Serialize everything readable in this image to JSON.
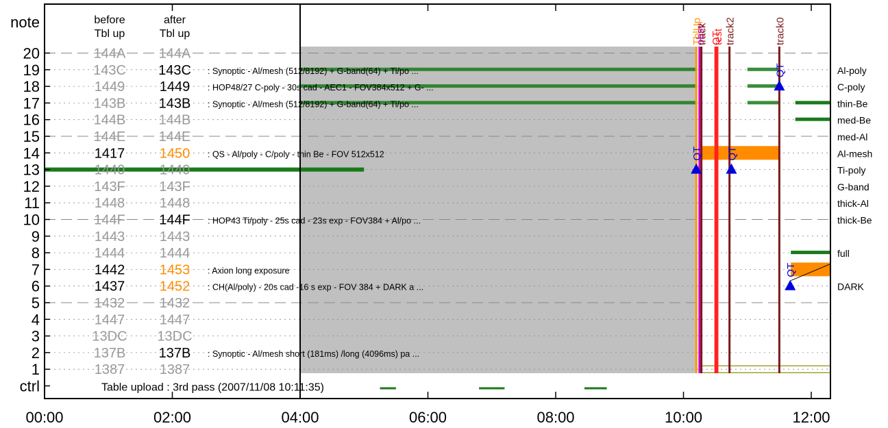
{
  "chart_data": {
    "type": "timeline",
    "x_range_hours": [
      0,
      12.3
    ],
    "x_ticks": [
      "00:00",
      "02:00",
      "04:00",
      "06:00",
      "08:00",
      "10:00",
      "12:00"
    ],
    "y_axis_label": "note",
    "y_range": [
      0,
      21
    ],
    "y_ticks": [
      "20",
      "19",
      "18",
      "17",
      "16",
      "15",
      "14",
      "13",
      "12",
      "11",
      "10",
      "9",
      "8",
      "7",
      "6",
      "5",
      "4",
      "3",
      "2",
      "1",
      "ctrl"
    ],
    "col_header_before": [
      "before",
      "Tbl up"
    ],
    "col_header_after": [
      "after",
      "Tbl up"
    ],
    "shaded_region_hours": [
      4.0,
      10.2
    ],
    "divider_hour": 4.0,
    "rows": [
      {
        "note": 20,
        "before": "144A",
        "after": "144A",
        "before_active": false,
        "after_state": "inactive",
        "desc": ""
      },
      {
        "note": 19,
        "before": "143C",
        "after": "143C",
        "before_active": false,
        "after_state": "active",
        "desc": ": Synoptic - Al/mesh (512/8192) + G-band(64) + Ti/po ..."
      },
      {
        "note": 18,
        "before": "1449",
        "after": "1449",
        "before_active": false,
        "after_state": "active",
        "desc": ": HOP48/27 C-poly - 30s cad - AEC1 - FOV384x512 + G- ..."
      },
      {
        "note": 17,
        "before": "143B",
        "after": "143B",
        "before_active": false,
        "after_state": "active",
        "desc": ": Synoptic - Al/mesh (512/8192) + G-band(64) + Ti/po ..."
      },
      {
        "note": 16,
        "before": "144B",
        "after": "144B",
        "before_active": false,
        "after_state": "inactive",
        "desc": ""
      },
      {
        "note": 15,
        "before": "144E",
        "after": "144E",
        "before_active": false,
        "after_state": "inactive",
        "desc": ""
      },
      {
        "note": 14,
        "before": "1417",
        "after": "1450",
        "before_active": true,
        "after_state": "new",
        "desc": ": QS - Al/poly - C/poly - thin Be - FOV 512x512"
      },
      {
        "note": 13,
        "before": "1440",
        "after": "1440",
        "before_active": false,
        "after_state": "inactive",
        "desc": ""
      },
      {
        "note": 12,
        "before": "143F",
        "after": "143F",
        "before_active": false,
        "after_state": "inactive",
        "desc": ""
      },
      {
        "note": 11,
        "before": "1448",
        "after": "1448",
        "before_active": false,
        "after_state": "inactive",
        "desc": ""
      },
      {
        "note": 10,
        "before": "144F",
        "after": "144F",
        "before_active": false,
        "after_state": "active",
        "desc": ": HOP43 Ti/poly - 25s cad - 23s exp - FOV384 + Al/po ..."
      },
      {
        "note": 9,
        "before": "1443",
        "after": "1443",
        "before_active": false,
        "after_state": "inactive",
        "desc": ""
      },
      {
        "note": 8,
        "before": "1444",
        "after": "1444",
        "before_active": false,
        "after_state": "inactive",
        "desc": ""
      },
      {
        "note": 7,
        "before": "1442",
        "after": "1453",
        "before_active": true,
        "after_state": "new",
        "desc": ": Axion long exposure"
      },
      {
        "note": 6,
        "before": "1437",
        "after": "1452",
        "before_active": true,
        "after_state": "new",
        "desc": ": CH(Al/poly) - 20s cad -16 s exp - FOV 384 + DARK a ..."
      },
      {
        "note": 5,
        "before": "1432",
        "after": "1432",
        "before_active": false,
        "after_state": "inactive",
        "desc": ""
      },
      {
        "note": 4,
        "before": "1447",
        "after": "1447",
        "before_active": false,
        "after_state": "inactive",
        "desc": ""
      },
      {
        "note": 3,
        "before": "13DC",
        "after": "13DC",
        "before_active": false,
        "after_state": "inactive",
        "desc": ""
      },
      {
        "note": 2,
        "before": "137B",
        "after": "137B",
        "before_active": false,
        "after_state": "active",
        "desc": ": Synoptic - Al/mesh short (181ms) /long (4096ms) pa ..."
      },
      {
        "note": 1,
        "before": "1387",
        "after": "1387",
        "before_active": false,
        "after_state": "inactive",
        "desc": ""
      }
    ],
    "filter_labels": [
      {
        "row": 19,
        "label": "Al-poly"
      },
      {
        "row": 18,
        "label": "C-poly"
      },
      {
        "row": 17,
        "label": "thin-Be"
      },
      {
        "row": 16,
        "label": "med-Be"
      },
      {
        "row": 15,
        "label": "med-Al"
      },
      {
        "row": 14,
        "label": "Al-mesh"
      },
      {
        "row": 13,
        "label": "Ti-poly"
      },
      {
        "row": 12,
        "label": "G-band"
      },
      {
        "row": 11,
        "label": "thick-Al"
      },
      {
        "row": 10,
        "label": "thick-Be"
      },
      {
        "row": 8,
        "label": "full"
      },
      {
        "row": 6,
        "label": "DARK"
      }
    ],
    "ctrl_text": "Table upload : 3rd pass (2007/11/08 10:11:35)",
    "event_lines": [
      {
        "label": "TblUp",
        "hour": 10.2,
        "color": "#ff9900"
      },
      {
        "label": "obsv",
        "hour": 10.25,
        "color": "#cc00cc"
      },
      {
        "label": "track",
        "hour": 10.28,
        "color": "#7a1a1a"
      },
      {
        "label": "QT",
        "hour": 10.5,
        "color": "#ff2222"
      },
      {
        "label": "test",
        "hour": 10.53,
        "color": "#ff2222"
      },
      {
        "label": "track2",
        "hour": 10.72,
        "color": "#7a1a1a"
      },
      {
        "label": "track0",
        "hour": 11.5,
        "color": "#7a1a1a"
      }
    ],
    "qt_markers": [
      {
        "hour": 10.2,
        "row": 13
      },
      {
        "hour": 10.75,
        "row": 13
      },
      {
        "hour": 11.5,
        "row": 18
      },
      {
        "hour": 11.67,
        "row": 6
      }
    ],
    "qt_label": "QT",
    "orange_blocks": [
      {
        "start": 10.28,
        "end": 11.5,
        "row": 14
      },
      {
        "start": 11.68,
        "end": 12.3,
        "row": 7
      }
    ],
    "colors": {
      "active_text": "#000000",
      "inactive_text": "#999999",
      "new_text": "#ff8c00",
      "shade": "#c0c0c0",
      "green": "#1a7a1a",
      "orange": "#ff8c00",
      "qt_blue": "#0000dd"
    }
  }
}
